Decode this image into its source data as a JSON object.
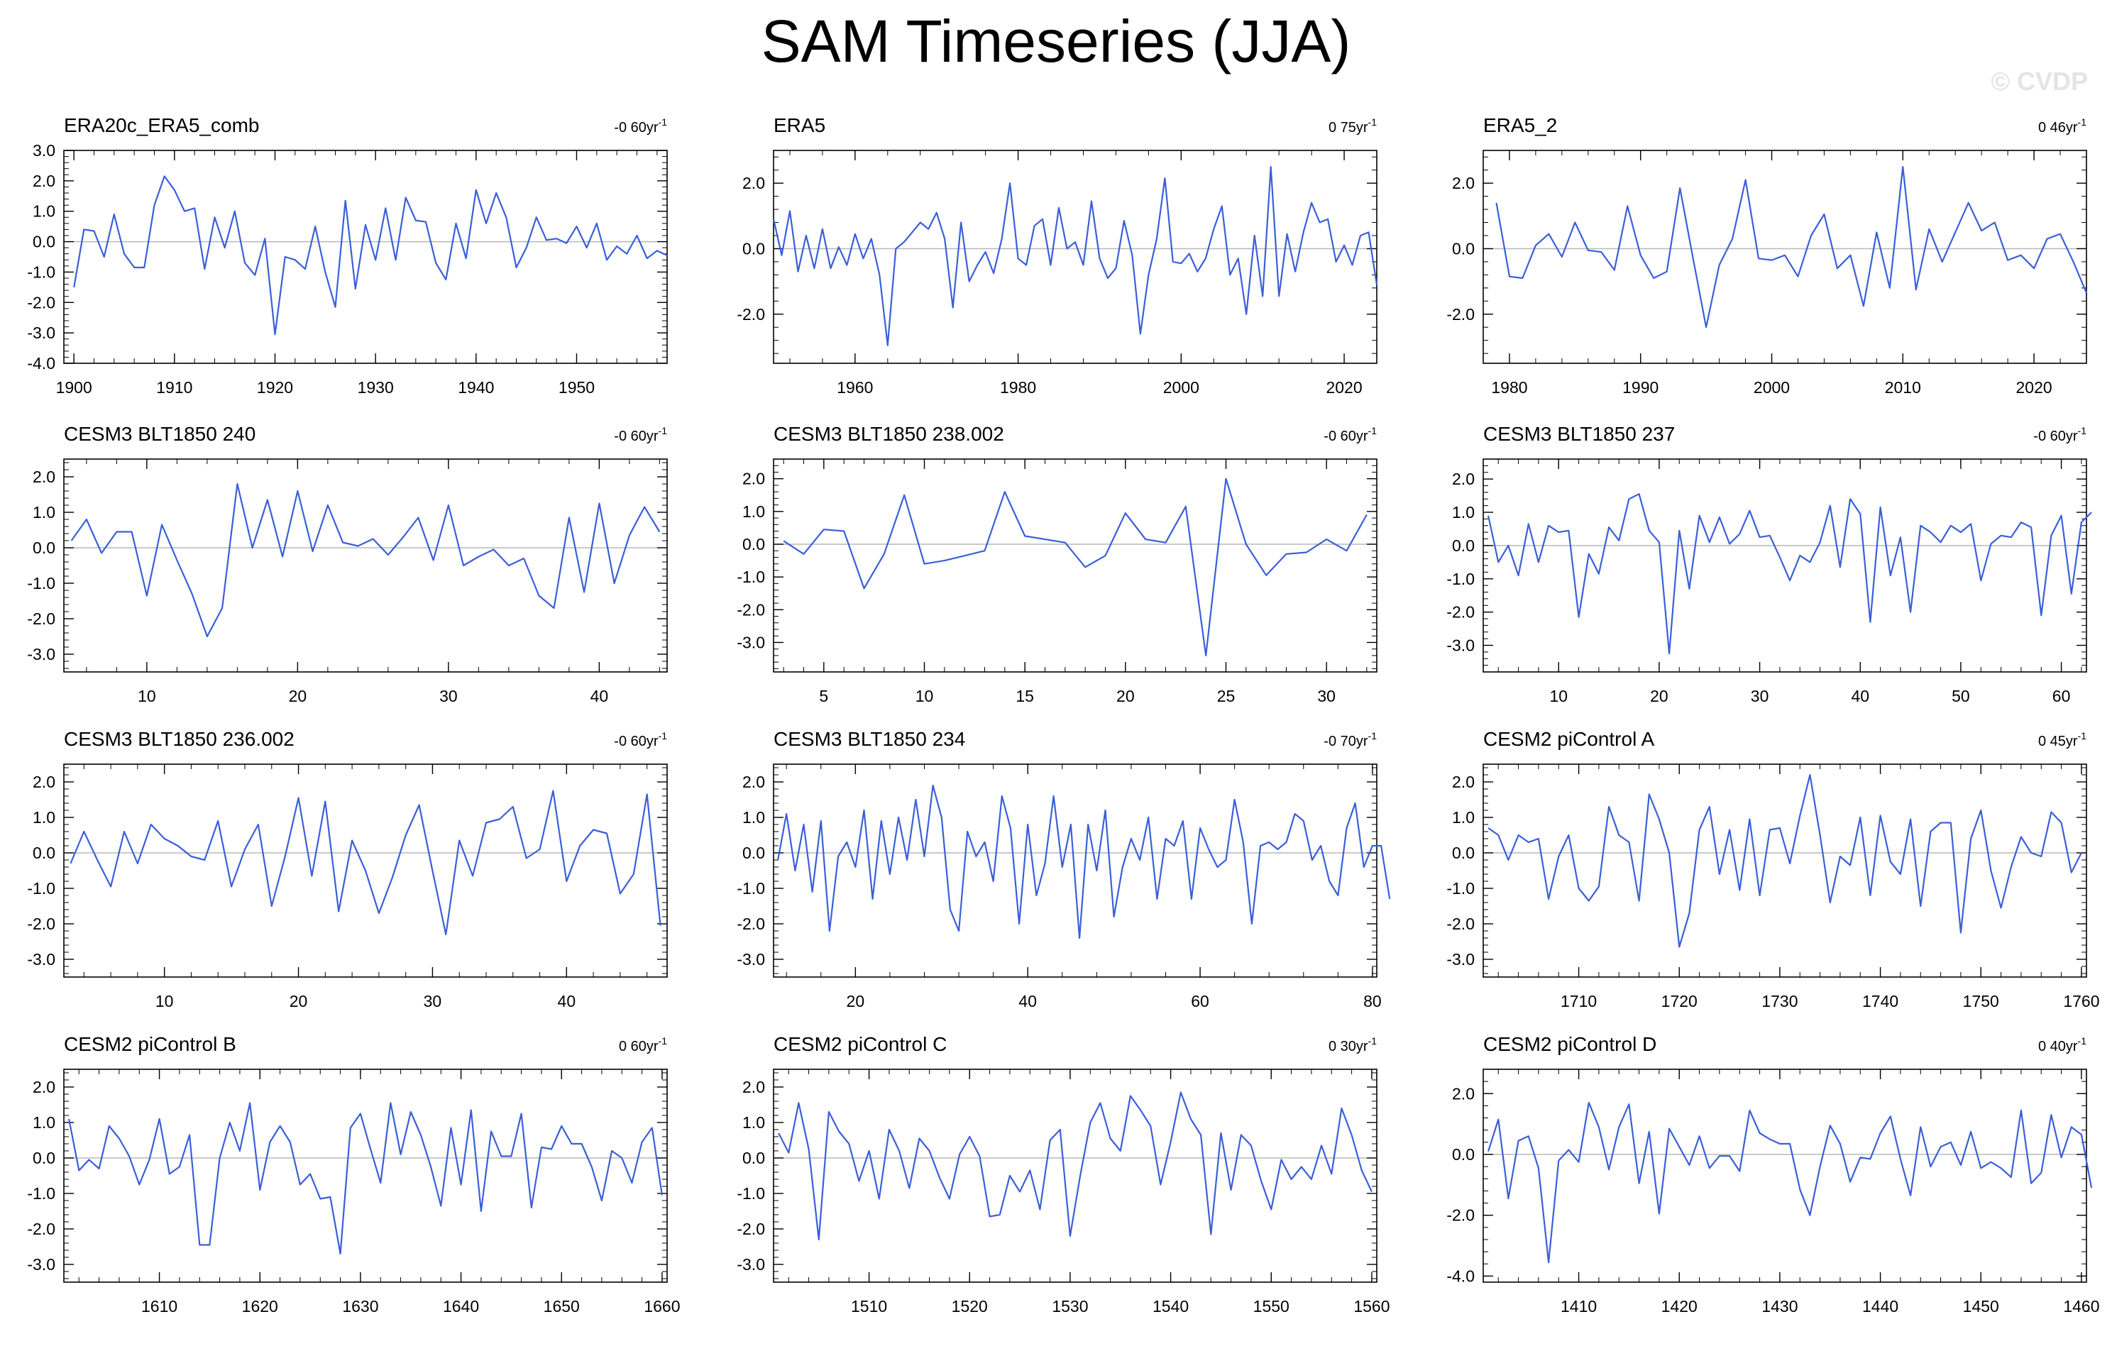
{
  "title": "SAM Timeseries (JJA)",
  "watermark": "© CVDP",
  "colors": {
    "line": "#3a5fd9",
    "zero": "#b8b8b8",
    "axis": "#000000"
  },
  "chart_data": [
    {
      "type": "line",
      "title": "ERA20c_ERA5_comb",
      "trend": "-0 60",
      "trend_unit": "yr",
      "trend_exp": "-1",
      "x_start": 1900,
      "xlim": [
        1899,
        1959
      ],
      "xticks": [
        1900,
        1910,
        1920,
        1930,
        1940,
        1950
      ],
      "ylim": [
        -4,
        3
      ],
      "yticks": [
        3.0,
        2.0,
        1.0,
        0.0,
        -1.0,
        -2.0,
        -3.0,
        -4.0
      ],
      "values": [
        -1.5,
        0.4,
        0.35,
        -0.5,
        0.9,
        -0.4,
        -0.85,
        -0.85,
        1.2,
        2.15,
        1.7,
        1.0,
        1.1,
        -0.9,
        0.8,
        -0.2,
        1.0,
        -0.7,
        -1.1,
        0.1,
        -3.05,
        -0.5,
        -0.6,
        -0.9,
        0.5,
        -1.0,
        -2.15,
        1.35,
        -1.55,
        0.55,
        -0.6,
        1.1,
        -0.6,
        1.45,
        0.7,
        0.65,
        -0.7,
        -1.25,
        0.6,
        -0.55,
        1.7,
        0.6,
        1.6,
        0.8,
        -0.85,
        -0.2,
        0.8,
        0.05,
        0.1,
        -0.05,
        0.5,
        -0.2,
        0.6,
        -0.6,
        -0.15,
        -0.4,
        0.2,
        -0.55,
        -0.3,
        -0.45
      ]
    },
    {
      "type": "line",
      "title": "ERA5",
      "trend": "0 75",
      "trend_unit": "yr",
      "trend_exp": "-1",
      "x_start": 1950,
      "xlim": [
        1950,
        2024
      ],
      "xticks": [
        1960,
        1980,
        2000,
        2020
      ],
      "ylim": [
        -3.5,
        3.0
      ],
      "yticks": [
        2.0,
        0.0,
        -2.0
      ],
      "values": [
        0.9,
        -0.2,
        1.15,
        -0.7,
        0.4,
        -0.6,
        0.6,
        -0.6,
        0.05,
        -0.5,
        0.45,
        -0.3,
        0.3,
        -0.8,
        -2.95,
        0.0,
        0.2,
        0.5,
        0.8,
        0.6,
        1.1,
        0.3,
        -1.8,
        0.8,
        -1.0,
        -0.5,
        -0.1,
        -0.75,
        0.3,
        2.0,
        -0.3,
        -0.5,
        0.7,
        0.9,
        -0.5,
        1.25,
        0.0,
        0.2,
        -0.5,
        1.45,
        -0.3,
        -0.9,
        -0.6,
        0.85,
        -0.2,
        -2.6,
        -0.8,
        0.3,
        2.15,
        -0.4,
        -0.45,
        -0.15,
        -0.7,
        -0.3,
        0.6,
        1.3,
        -0.8,
        -0.3,
        -2.0,
        0.4,
        -1.45,
        2.5,
        -1.45,
        0.45,
        -0.7,
        0.5,
        1.4,
        0.8,
        0.9,
        -0.4,
        0.1,
        -0.5,
        0.4,
        0.5,
        -1.1
      ]
    },
    {
      "type": "line",
      "title": "ERA5_2",
      "trend": "0 46",
      "trend_unit": "yr",
      "trend_exp": "-1",
      "x_start": 1979,
      "xlim": [
        1978,
        2024
      ],
      "xticks": [
        1980,
        1990,
        2000,
        2010,
        2020
      ],
      "ylim": [
        -3.5,
        3.0
      ],
      "yticks": [
        2.0,
        0.0,
        -2.0
      ],
      "values": [
        1.4,
        -0.85,
        -0.9,
        0.1,
        0.45,
        -0.25,
        0.8,
        -0.05,
        -0.1,
        -0.65,
        1.3,
        -0.2,
        -0.9,
        -0.7,
        1.85,
        -0.3,
        -2.4,
        -0.5,
        0.3,
        2.1,
        -0.3,
        -0.35,
        -0.2,
        -0.85,
        0.4,
        1.05,
        -0.6,
        -0.2,
        -1.75,
        0.5,
        -1.2,
        2.5,
        -1.25,
        0.6,
        -0.4,
        0.5,
        1.4,
        0.55,
        0.8,
        -0.35,
        -0.2,
        -0.6,
        0.3,
        0.45,
        -0.4,
        -1.35
      ]
    },
    {
      "type": "line",
      "title": "CESM3 BLT1850 240",
      "trend": "-0 60",
      "trend_unit": "yr",
      "trend_exp": "-1",
      "x_start": 5,
      "xlim": [
        4.5,
        44.5
      ],
      "xticks": [
        10,
        20,
        30,
        40
      ],
      "ylim": [
        -3.5,
        2.5
      ],
      "yticks": [
        2.0,
        1.0,
        0.0,
        -1.0,
        -2.0,
        -3.0
      ],
      "values": [
        0.2,
        0.8,
        -0.15,
        0.45,
        0.45,
        -1.35,
        0.65,
        -0.35,
        -1.3,
        -2.5,
        -1.7,
        1.8,
        0.0,
        1.35,
        -0.25,
        1.6,
        -0.1,
        1.2,
        0.15,
        0.05,
        0.25,
        -0.2,
        0.3,
        0.85,
        -0.35,
        1.2,
        -0.5,
        -0.25,
        -0.05,
        -0.5,
        -0.3,
        -1.35,
        -1.7,
        0.85,
        -1.25,
        1.25,
        -1.0,
        0.35,
        1.15,
        0.45
      ]
    },
    {
      "type": "line",
      "title": "CESM3 BLT1850 238.002",
      "trend": "-0 60",
      "trend_unit": "yr",
      "trend_exp": "-1",
      "x_start": 3,
      "xlim": [
        2.5,
        32.5
      ],
      "xticks": [
        5,
        10,
        15,
        20,
        25,
        30
      ],
      "ylim": [
        -3.9,
        2.6
      ],
      "yticks": [
        2.0,
        1.0,
        0.0,
        -1.0,
        -2.0,
        -3.0
      ],
      "values": [
        0.1,
        -0.3,
        0.45,
        0.4,
        -1.35,
        -0.3,
        1.5,
        -0.6,
        -0.5,
        -0.35,
        -0.2,
        1.6,
        0.25,
        0.15,
        0.05,
        -0.7,
        -0.35,
        0.95,
        0.15,
        0.05,
        1.15,
        -3.4,
        2.0,
        0.0,
        -0.95,
        -0.3,
        -0.25,
        0.15,
        -0.2,
        0.9
      ]
    },
    {
      "type": "line",
      "title": "CESM3 BLT1850 237",
      "trend": "-0 60",
      "trend_unit": "yr",
      "trend_exp": "-1",
      "x_start": 3,
      "xlim": [
        2.5,
        62.5
      ],
      "xticks": [
        10,
        20,
        30,
        40,
        50,
        60
      ],
      "ylim": [
        -3.8,
        2.6
      ],
      "yticks": [
        2.0,
        1.0,
        0.0,
        -1.0,
        -2.0,
        -3.0
      ],
      "values": [
        0.9,
        -0.5,
        0.0,
        -0.9,
        0.65,
        -0.5,
        0.6,
        0.4,
        0.45,
        -2.15,
        -0.25,
        -0.85,
        0.55,
        0.15,
        1.4,
        1.55,
        0.45,
        0.1,
        -3.25,
        0.45,
        -1.3,
        0.9,
        0.1,
        0.85,
        0.05,
        0.35,
        1.05,
        0.25,
        0.3,
        -0.35,
        -1.05,
        -0.3,
        -0.5,
        0.1,
        1.2,
        -0.65,
        1.4,
        0.95,
        -2.3,
        1.15,
        -0.9,
        0.25,
        -2.0,
        0.6,
        0.4,
        0.1,
        0.6,
        0.4,
        0.65,
        -1.05,
        0.05,
        0.3,
        0.25,
        0.7,
        0.55,
        -2.1,
        0.3,
        0.9,
        -1.45,
        0.7,
        1.0
      ]
    },
    {
      "type": "line",
      "title": "CESM3 BLT1850 236.002",
      "trend": "-0 60",
      "trend_unit": "yr",
      "trend_exp": "-1",
      "x_start": 3,
      "xlim": [
        2.5,
        47.5
      ],
      "xticks": [
        10,
        20,
        30,
        40
      ],
      "ylim": [
        -3.5,
        2.5
      ],
      "yticks": [
        2.0,
        1.0,
        0.0,
        -1.0,
        -2.0,
        -3.0
      ],
      "values": [
        -0.3,
        0.6,
        -0.2,
        -0.95,
        0.6,
        -0.3,
        0.8,
        0.4,
        0.2,
        -0.1,
        -0.2,
        0.9,
        -0.95,
        0.1,
        0.8,
        -1.5,
        -0.1,
        1.55,
        -0.65,
        1.45,
        -1.65,
        0.35,
        -0.5,
        -1.7,
        -0.7,
        0.5,
        1.35,
        -0.5,
        -2.3,
        0.35,
        -0.65,
        0.85,
        0.95,
        1.3,
        -0.15,
        0.1,
        1.75,
        -0.8,
        0.2,
        0.65,
        0.55,
        -1.15,
        -0.6,
        1.65,
        -2.05
      ]
    },
    {
      "type": "line",
      "title": "CESM3 BLT1850 234",
      "trend": "-0 70",
      "trend_unit": "yr",
      "trend_exp": "-1",
      "x_start": 11,
      "xlim": [
        10.5,
        80.5
      ],
      "xticks": [
        20,
        40,
        60,
        80
      ],
      "ylim": [
        -3.5,
        2.5
      ],
      "yticks": [
        2.0,
        1.0,
        0.0,
        -1.0,
        -2.0,
        -3.0
      ],
      "values": [
        -0.2,
        1.1,
        -0.5,
        0.8,
        -1.1,
        0.9,
        -2.2,
        -0.1,
        0.3,
        -0.4,
        1.2,
        -1.3,
        0.9,
        -0.6,
        1.0,
        -0.2,
        1.5,
        -0.1,
        1.9,
        1.0,
        -1.6,
        -2.2,
        0.6,
        -0.1,
        0.3,
        -0.8,
        1.6,
        0.7,
        -2.0,
        0.8,
        -1.2,
        -0.3,
        1.6,
        -0.4,
        0.8,
        -2.4,
        0.8,
        -0.5,
        1.2,
        -1.8,
        -0.4,
        0.4,
        -0.2,
        1.0,
        -1.3,
        0.4,
        0.2,
        0.9,
        -1.3,
        0.7,
        0.1,
        -0.4,
        -0.2,
        1.5,
        0.3,
        -2.0,
        0.2,
        0.3,
        0.1,
        0.3,
        1.1,
        0.9,
        -0.2,
        0.2,
        -0.8,
        -1.2,
        0.7,
        1.4,
        -0.4,
        0.2,
        0.2,
        -1.3
      ]
    },
    {
      "type": "line",
      "title": "CESM2 piControl A",
      "trend": "0 45",
      "trend_unit": "yr",
      "trend_exp": "-1",
      "x_start": 1701,
      "xlim": [
        1700.5,
        1760.5
      ],
      "xticks": [
        1710,
        1720,
        1730,
        1740,
        1750,
        1760
      ],
      "ylim": [
        -3.5,
        2.5
      ],
      "yticks": [
        2.0,
        1.0,
        0.0,
        -1.0,
        -2.0,
        -3.0
      ],
      "values": [
        0.7,
        0.5,
        -0.2,
        0.5,
        0.3,
        0.4,
        -1.3,
        -0.1,
        0.5,
        -1.0,
        -1.35,
        -0.95,
        1.3,
        0.5,
        0.3,
        -1.35,
        1.65,
        0.95,
        0.0,
        -2.65,
        -1.7,
        0.65,
        1.3,
        -0.6,
        0.65,
        -1.05,
        0.95,
        -1.2,
        0.65,
        0.7,
        -0.3,
        1.05,
        2.2,
        0.5,
        -1.4,
        -0.1,
        -0.35,
        1.0,
        -1.2,
        1.05,
        -0.25,
        -0.6,
        0.95,
        -1.5,
        0.6,
        0.85,
        0.85,
        -2.25,
        0.4,
        1.2,
        -0.5,
        -1.55,
        -0.4,
        0.45,
        0.0,
        -0.1,
        1.15,
        0.85,
        -0.55,
        0.0
      ]
    },
    {
      "type": "line",
      "title": "CESM2 piControl B",
      "trend": "0 60",
      "trend_unit": "yr",
      "trend_exp": "-1",
      "x_start": 1601,
      "xlim": [
        1600.5,
        1660.5
      ],
      "xticks": [
        1610,
        1620,
        1630,
        1640,
        1650,
        1660
      ],
      "ylim": [
        -3.5,
        2.5
      ],
      "yticks": [
        2.0,
        1.0,
        0.0,
        -1.0,
        -2.0,
        -3.0
      ],
      "values": [
        1.1,
        -0.35,
        -0.05,
        -0.3,
        0.9,
        0.55,
        0.05,
        -0.75,
        -0.05,
        1.1,
        -0.45,
        -0.25,
        0.65,
        -2.45,
        -2.45,
        0.0,
        1.0,
        0.2,
        1.55,
        -0.9,
        0.45,
        0.9,
        0.45,
        -0.75,
        -0.45,
        -1.15,
        -1.1,
        -2.7,
        0.85,
        1.25,
        0.25,
        -0.7,
        1.55,
        0.1,
        1.3,
        0.65,
        -0.25,
        -1.35,
        0.85,
        -0.75,
        1.35,
        -1.5,
        0.75,
        0.05,
        0.05,
        1.25,
        -1.4,
        0.3,
        0.25,
        0.9,
        0.4,
        0.4,
        -0.25,
        -1.2,
        0.2,
        0.0,
        -0.7,
        0.45,
        0.85,
        -1.05
      ]
    },
    {
      "type": "line",
      "title": "CESM2 piControl C",
      "trend": "0 30",
      "trend_unit": "yr",
      "trend_exp": "-1",
      "x_start": 1501,
      "xlim": [
        1500.5,
        1560.5
      ],
      "xticks": [
        1510,
        1520,
        1530,
        1540,
        1550,
        1560
      ],
      "ylim": [
        -3.5,
        2.5
      ],
      "yticks": [
        2.0,
        1.0,
        0.0,
        -1.0,
        -2.0,
        -3.0
      ],
      "values": [
        0.7,
        0.15,
        1.55,
        0.25,
        -2.3,
        1.3,
        0.75,
        0.4,
        -0.65,
        0.2,
        -1.15,
        0.8,
        0.2,
        -0.85,
        0.55,
        0.2,
        -0.55,
        -1.15,
        0.1,
        0.6,
        0.05,
        -1.65,
        -1.6,
        -0.5,
        -0.95,
        -0.35,
        -1.45,
        0.5,
        0.8,
        -2.2,
        -0.5,
        1.0,
        1.55,
        0.55,
        0.2,
        1.75,
        1.35,
        0.9,
        -0.75,
        0.45,
        1.85,
        1.1,
        0.65,
        -2.15,
        0.7,
        -0.9,
        0.65,
        0.35,
        -0.65,
        -1.45,
        -0.05,
        -0.6,
        -0.25,
        -0.6,
        0.35,
        -0.45,
        1.4,
        0.65,
        -0.35,
        -0.95
      ]
    },
    {
      "type": "line",
      "title": "CESM2 piControl D",
      "trend": "0 40",
      "trend_unit": "yr",
      "trend_exp": "-1",
      "x_start": 1401,
      "xlim": [
        1400.5,
        1460.5
      ],
      "xticks": [
        1410,
        1420,
        1430,
        1440,
        1450,
        1460
      ],
      "ylim": [
        -4.2,
        2.8
      ],
      "yticks": [
        2.0,
        0.0,
        -2.0,
        -4.0
      ],
      "values": [
        0.1,
        1.15,
        -1.45,
        0.45,
        0.6,
        -0.45,
        -3.55,
        -0.2,
        0.15,
        -0.25,
        1.7,
        0.9,
        -0.5,
        0.9,
        1.65,
        -0.95,
        0.75,
        -1.95,
        0.85,
        0.25,
        -0.35,
        0.6,
        -0.45,
        -0.05,
        -0.05,
        -0.55,
        1.45,
        0.7,
        0.5,
        0.35,
        0.35,
        -1.15,
        -2.0,
        -0.4,
        0.95,
        0.35,
        -0.9,
        -0.1,
        -0.15,
        0.7,
        1.25,
        -0.15,
        -1.35,
        0.9,
        -0.4,
        0.25,
        0.4,
        -0.35,
        0.75,
        -0.45,
        -0.25,
        -0.45,
        -0.75,
        1.45,
        -0.95,
        -0.6,
        1.3,
        -0.1,
        0.9,
        0.65,
        -1.1
      ]
    }
  ]
}
